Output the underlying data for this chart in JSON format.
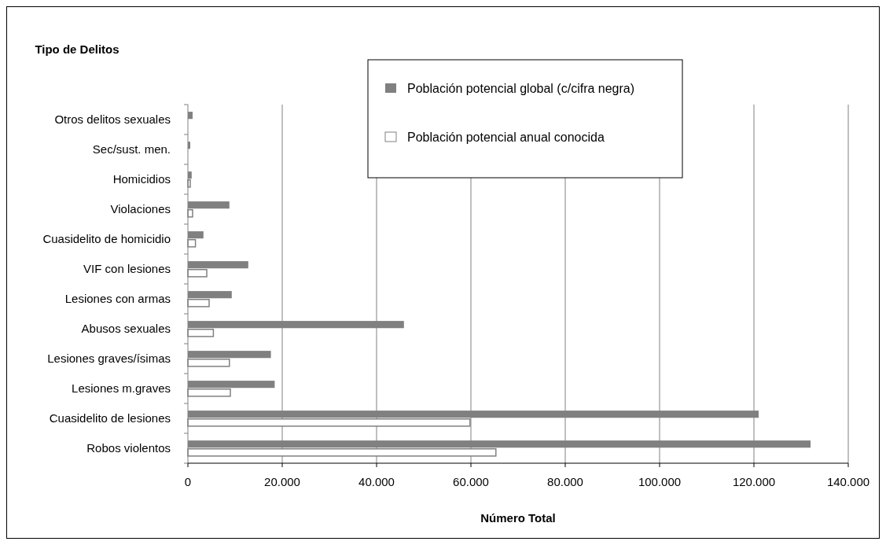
{
  "chart_data": {
    "type": "bar",
    "orientation": "horizontal",
    "ylabel": "Tipo de Delitos",
    "xlabel": "Número Total",
    "categories": [
      "Otros delitos sexuales",
      "Sec/sust. men.",
      "Homicidios",
      "Violaciones",
      "Cuasidelito de homicidio",
      "VIF con lesiones",
      "Lesiones con armas",
      "Abusos sexuales",
      "Lesiones graves/ísimas",
      "Lesiones m.graves",
      "Cuasidelito de lesiones",
      "Robos violentos"
    ],
    "series": [
      {
        "name": "Población potencial global (c/cifra negra)",
        "color": "#808080",
        "values": [
          1000,
          500,
          800,
          8800,
          3300,
          12800,
          9300,
          45800,
          17600,
          18400,
          121000,
          132000
        ]
      },
      {
        "name": "Población potencial anual conocida",
        "color": "#ffffff",
        "values": [
          null,
          null,
          500,
          1000,
          1600,
          4000,
          4500,
          5400,
          8800,
          9000,
          59800,
          65300
        ]
      }
    ],
    "xlim": [
      0,
      140000
    ],
    "xticks": [
      {
        "value": 0,
        "label": "0"
      },
      {
        "value": 20000,
        "label": "20.000"
      },
      {
        "value": 40000,
        "label": "40.000"
      },
      {
        "value": 60000,
        "label": "60.000"
      },
      {
        "value": 80000,
        "label": "80.000"
      },
      {
        "value": 100000,
        "label": "100.000"
      },
      {
        "value": 120000,
        "label": "120.000"
      },
      {
        "value": 140000,
        "label": "140.000"
      }
    ],
    "grid": "x",
    "legend": "top right"
  }
}
